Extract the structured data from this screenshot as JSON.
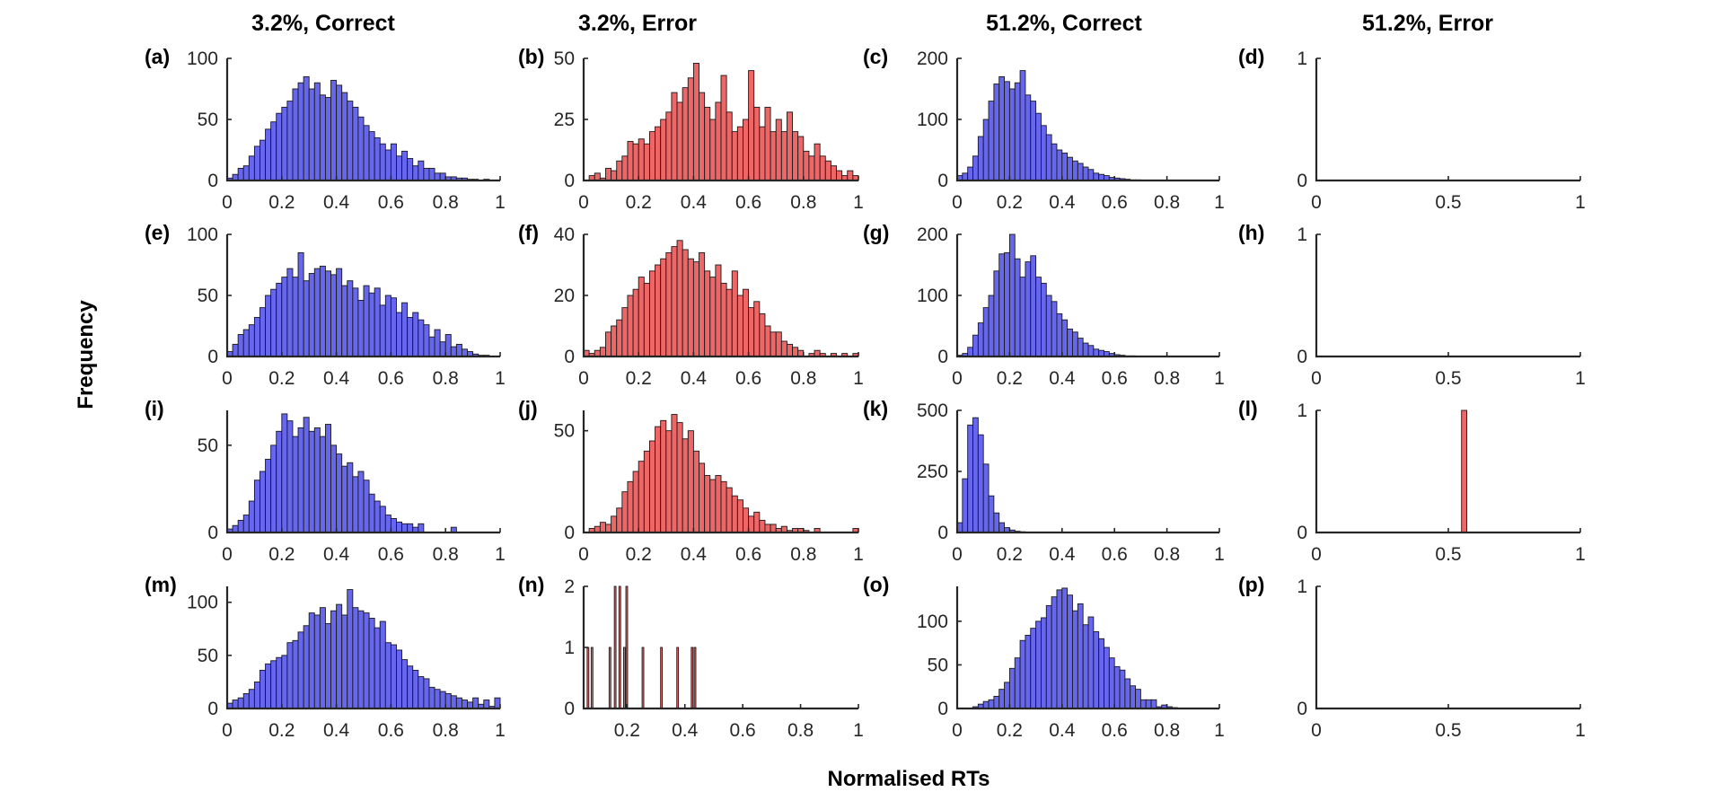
{
  "column_titles": [
    "3.2%, Correct",
    "3.2%, Error",
    "51.2%, Correct",
    "51.2%, Error"
  ],
  "xlabel": "Normalised RTs",
  "ylabel": "Frequency",
  "colors": {
    "correct": "#6666ee",
    "error": "#ee6666",
    "edge": "#1a1a1a",
    "axis": "#262626"
  },
  "chart_data": [
    {
      "panel": "(a)",
      "type": "bar",
      "color": "correct",
      "xlim": [
        0,
        1
      ],
      "ylim": [
        0,
        100
      ],
      "xticks": [
        "0",
        "0.2",
        "0.4",
        "0.6",
        "0.8",
        "1"
      ],
      "yticks": [
        0,
        50,
        100
      ],
      "bin_width": 0.02,
      "bin_start": 0,
      "values": [
        2,
        5,
        10,
        12,
        20,
        28,
        33,
        42,
        48,
        55,
        60,
        65,
        75,
        80,
        85,
        75,
        80,
        70,
        68,
        82,
        78,
        72,
        65,
        60,
        52,
        45,
        40,
        35,
        30,
        25,
        30,
        20,
        24,
        18,
        12,
        16,
        10,
        10,
        6,
        6,
        3,
        3,
        2,
        2,
        1,
        1,
        0,
        1,
        0,
        0
      ]
    },
    {
      "panel": "(b)",
      "type": "bar",
      "color": "error",
      "xlim": [
        0,
        1
      ],
      "ylim": [
        0,
        50
      ],
      "xticks": [
        "0",
        "0.2",
        "0.4",
        "0.6",
        "0.8",
        "1"
      ],
      "yticks": [
        0,
        25,
        50
      ],
      "bin_width": 0.02,
      "bin_start": 0,
      "values": [
        0,
        2,
        3,
        1,
        5,
        4,
        8,
        10,
        16,
        15,
        17,
        15,
        20,
        22,
        25,
        28,
        36,
        32,
        38,
        42,
        48,
        36,
        30,
        25,
        32,
        43,
        28,
        20,
        22,
        25,
        45,
        30,
        22,
        30,
        20,
        25,
        20,
        28,
        20,
        18,
        12,
        10,
        15,
        10,
        8,
        6,
        4,
        2,
        4,
        2
      ]
    },
    {
      "panel": "(c)",
      "type": "bar",
      "color": "correct",
      "xlim": [
        0,
        1
      ],
      "ylim": [
        0,
        200
      ],
      "xticks": [
        "0",
        "0.2",
        "0.4",
        "0.6",
        "0.8",
        "1"
      ],
      "yticks": [
        0,
        100,
        200
      ],
      "bin_width": 0.02,
      "bin_start": 0,
      "values": [
        8,
        12,
        22,
        40,
        72,
        100,
        130,
        158,
        170,
        162,
        150,
        160,
        180,
        140,
        130,
        110,
        90,
        75,
        60,
        50,
        45,
        38,
        32,
        28,
        22,
        18,
        12,
        10,
        8,
        5,
        4,
        3,
        2,
        1,
        1,
        0,
        0,
        0,
        0,
        0,
        0,
        0,
        0,
        0,
        0,
        0,
        0,
        0,
        0,
        0
      ]
    },
    {
      "panel": "(d)",
      "type": "empty",
      "xlim": [
        0,
        1
      ],
      "ylim": [
        0,
        1
      ],
      "xticks": [
        "0",
        "0.5",
        "1"
      ],
      "yticks": [
        0,
        1
      ],
      "values": []
    },
    {
      "panel": "(e)",
      "type": "bar",
      "color": "correct",
      "xlim": [
        0,
        1
      ],
      "ylim": [
        0,
        100
      ],
      "xticks": [
        "0",
        "0.2",
        "0.4",
        "0.6",
        "0.8",
        "1"
      ],
      "yticks": [
        0,
        50,
        100
      ],
      "bin_width": 0.02,
      "bin_start": 0,
      "values": [
        4,
        10,
        18,
        22,
        26,
        32,
        40,
        50,
        55,
        60,
        65,
        72,
        65,
        85,
        62,
        68,
        72,
        74,
        70,
        67,
        72,
        58,
        62,
        56,
        46,
        58,
        52,
        56,
        42,
        50,
        48,
        36,
        44,
        32,
        36,
        30,
        26,
        16,
        22,
        12,
        18,
        8,
        10,
        6,
        4,
        2,
        1,
        1,
        0,
        0
      ]
    },
    {
      "panel": "(f)",
      "type": "bar",
      "color": "error",
      "xlim": [
        0,
        1
      ],
      "ylim": [
        0,
        40
      ],
      "xticks": [
        "0",
        "0.2",
        "0.4",
        "0.6",
        "0.8",
        "1"
      ],
      "yticks": [
        0,
        20,
        40
      ],
      "bin_width": 0.02,
      "bin_start": 0,
      "values": [
        2,
        1,
        2,
        3,
        8,
        10,
        12,
        16,
        20,
        22,
        26,
        24,
        28,
        30,
        32,
        34,
        36,
        38,
        35,
        32,
        31,
        34,
        28,
        26,
        30,
        24,
        22,
        28,
        20,
        22,
        16,
        18,
        14,
        10,
        8,
        8,
        5,
        4,
        3,
        2,
        0,
        1,
        2,
        1,
        0,
        1,
        0,
        1,
        0,
        1
      ]
    },
    {
      "panel": "(g)",
      "type": "bar",
      "color": "correct",
      "xlim": [
        0,
        1
      ],
      "ylim": [
        0,
        200
      ],
      "xticks": [
        "0",
        "0.2",
        "0.4",
        "0.6",
        "0.8",
        "1"
      ],
      "yticks": [
        0,
        100,
        200
      ],
      "bin_width": 0.02,
      "bin_start": 0,
      "values": [
        2,
        5,
        15,
        35,
        55,
        80,
        100,
        140,
        168,
        170,
        200,
        160,
        130,
        155,
        165,
        130,
        120,
        100,
        90,
        70,
        60,
        45,
        40,
        30,
        22,
        18,
        12,
        10,
        8,
        5,
        3,
        2,
        1,
        1,
        0,
        0,
        0,
        0,
        0,
        0,
        0,
        0,
        0,
        0,
        0,
        0,
        0,
        0,
        0,
        0
      ]
    },
    {
      "panel": "(h)",
      "type": "empty",
      "xlim": [
        0,
        1
      ],
      "ylim": [
        0,
        1
      ],
      "xticks": [
        "0",
        "0.5",
        "1"
      ],
      "yticks": [
        0,
        1
      ],
      "values": []
    },
    {
      "panel": "(i)",
      "type": "bar",
      "color": "correct",
      "xlim": [
        0,
        1
      ],
      "ylim": [
        0,
        70
      ],
      "xticks": [
        "0",
        "0.2",
        "0.4",
        "0.6",
        "0.8",
        "1"
      ],
      "yticks": [
        0,
        50
      ],
      "bin_width": 0.02,
      "bin_start": 0,
      "values": [
        2,
        4,
        7,
        10,
        18,
        30,
        35,
        42,
        50,
        58,
        68,
        64,
        55,
        60,
        66,
        58,
        60,
        55,
        62,
        50,
        45,
        38,
        40,
        32,
        35,
        30,
        22,
        18,
        15,
        10,
        8,
        6,
        5,
        5,
        3,
        5,
        0,
        0,
        0,
        0,
        0,
        3,
        0,
        0,
        0,
        0,
        0,
        0,
        0,
        0
      ]
    },
    {
      "panel": "(j)",
      "type": "bar",
      "color": "error",
      "xlim": [
        0,
        1
      ],
      "ylim": [
        0,
        60
      ],
      "xticks": [
        "0",
        "0.2",
        "0.4",
        "0.6",
        "0.8",
        "1"
      ],
      "yticks": [
        0,
        50
      ],
      "bin_width": 0.02,
      "bin_start": 0,
      "values": [
        0,
        2,
        3,
        5,
        4,
        8,
        12,
        20,
        25,
        30,
        35,
        40,
        45,
        52,
        55,
        50,
        58,
        54,
        46,
        50,
        40,
        34,
        28,
        26,
        28,
        25,
        22,
        18,
        16,
        12,
        8,
        10,
        6,
        4,
        4,
        2,
        3,
        1,
        2,
        2,
        1,
        0,
        2,
        0,
        0,
        0,
        0,
        0,
        0,
        2
      ]
    },
    {
      "panel": "(k)",
      "type": "bar",
      "color": "correct",
      "xlim": [
        0,
        1
      ],
      "ylim": [
        0,
        500
      ],
      "xticks": [
        "0",
        "0.2",
        "0.4",
        "0.6",
        "0.8",
        "1"
      ],
      "yticks": [
        0,
        250,
        500
      ],
      "bin_width": 0.02,
      "bin_start": 0,
      "values": [
        40,
        220,
        440,
        470,
        400,
        280,
        150,
        80,
        40,
        20,
        10,
        5,
        3,
        2,
        1,
        1,
        0,
        0,
        0,
        0,
        0,
        0,
        0,
        0,
        0,
        0,
        0,
        0,
        0,
        0,
        0,
        0,
        0,
        0,
        0,
        0,
        0,
        0,
        0,
        0,
        0,
        0,
        0,
        0,
        0,
        0,
        0,
        0,
        0,
        0
      ]
    },
    {
      "panel": "(l)",
      "type": "bar",
      "color": "error",
      "xlim": [
        0,
        1
      ],
      "ylim": [
        0,
        1
      ],
      "xticks": [
        "0",
        "0.5",
        "1"
      ],
      "yticks": [
        0,
        1
      ],
      "bin_width": 0.02,
      "bin_start": 0.55,
      "values": [
        1
      ]
    },
    {
      "panel": "(m)",
      "type": "bar",
      "color": "correct",
      "xlim": [
        0,
        1
      ],
      "ylim": [
        0,
        115
      ],
      "xticks": [
        "0",
        "0.2",
        "0.4",
        "0.6",
        "0.8",
        "1"
      ],
      "yticks": [
        0,
        50,
        100
      ],
      "bin_width": 0.02,
      "bin_start": 0,
      "values": [
        5,
        8,
        10,
        14,
        18,
        25,
        36,
        42,
        45,
        48,
        50,
        62,
        64,
        72,
        78,
        90,
        88,
        95,
        80,
        92,
        98,
        88,
        112,
        95,
        92,
        90,
        85,
        76,
        82,
        62,
        60,
        55,
        46,
        40,
        36,
        30,
        28,
        20,
        18,
        16,
        14,
        12,
        10,
        8,
        6,
        10,
        4,
        8,
        2,
        10
      ]
    },
    {
      "panel": "(n)",
      "type": "bar",
      "color": "error",
      "xlim": [
        0.05,
        1
      ],
      "ylim": [
        0,
        2
      ],
      "xticks": [
        "0.2",
        "0.4",
        "0.6",
        "0.8",
        "1"
      ],
      "yticks": [
        0,
        1,
        2
      ],
      "bin_width": 0.006,
      "bins": [
        [
          0.062,
          1
        ],
        [
          0.076,
          1
        ],
        [
          0.138,
          1
        ],
        [
          0.156,
          2
        ],
        [
          0.172,
          2
        ],
        [
          0.188,
          1
        ],
        [
          0.196,
          2
        ],
        [
          0.252,
          1
        ],
        [
          0.316,
          1
        ],
        [
          0.372,
          1
        ],
        [
          0.422,
          1
        ],
        [
          0.432,
          1
        ]
      ]
    },
    {
      "panel": "(o)",
      "type": "bar",
      "color": "correct",
      "xlim": [
        0,
        1
      ],
      "ylim": [
        0,
        140
      ],
      "xticks": [
        "0",
        "0.2",
        "0.4",
        "0.6",
        "0.8",
        "1"
      ],
      "yticks": [
        0,
        50,
        100
      ],
      "bin_width": 0.02,
      "bin_start": 0,
      "values": [
        0,
        0,
        0,
        2,
        5,
        8,
        10,
        14,
        22,
        30,
        46,
        58,
        78,
        84,
        92,
        100,
        104,
        118,
        128,
        136,
        138,
        130,
        112,
        120,
        96,
        105,
        88,
        80,
        70,
        58,
        48,
        44,
        34,
        26,
        22,
        10,
        10,
        10,
        2,
        4,
        2,
        1,
        0,
        0,
        0,
        0,
        0,
        0,
        0,
        0
      ]
    },
    {
      "panel": "(p)",
      "type": "empty",
      "xlim": [
        0,
        1
      ],
      "ylim": [
        0,
        1
      ],
      "xticks": [
        "0",
        "0.5",
        "1"
      ],
      "yticks": [
        0,
        1
      ],
      "values": []
    }
  ]
}
